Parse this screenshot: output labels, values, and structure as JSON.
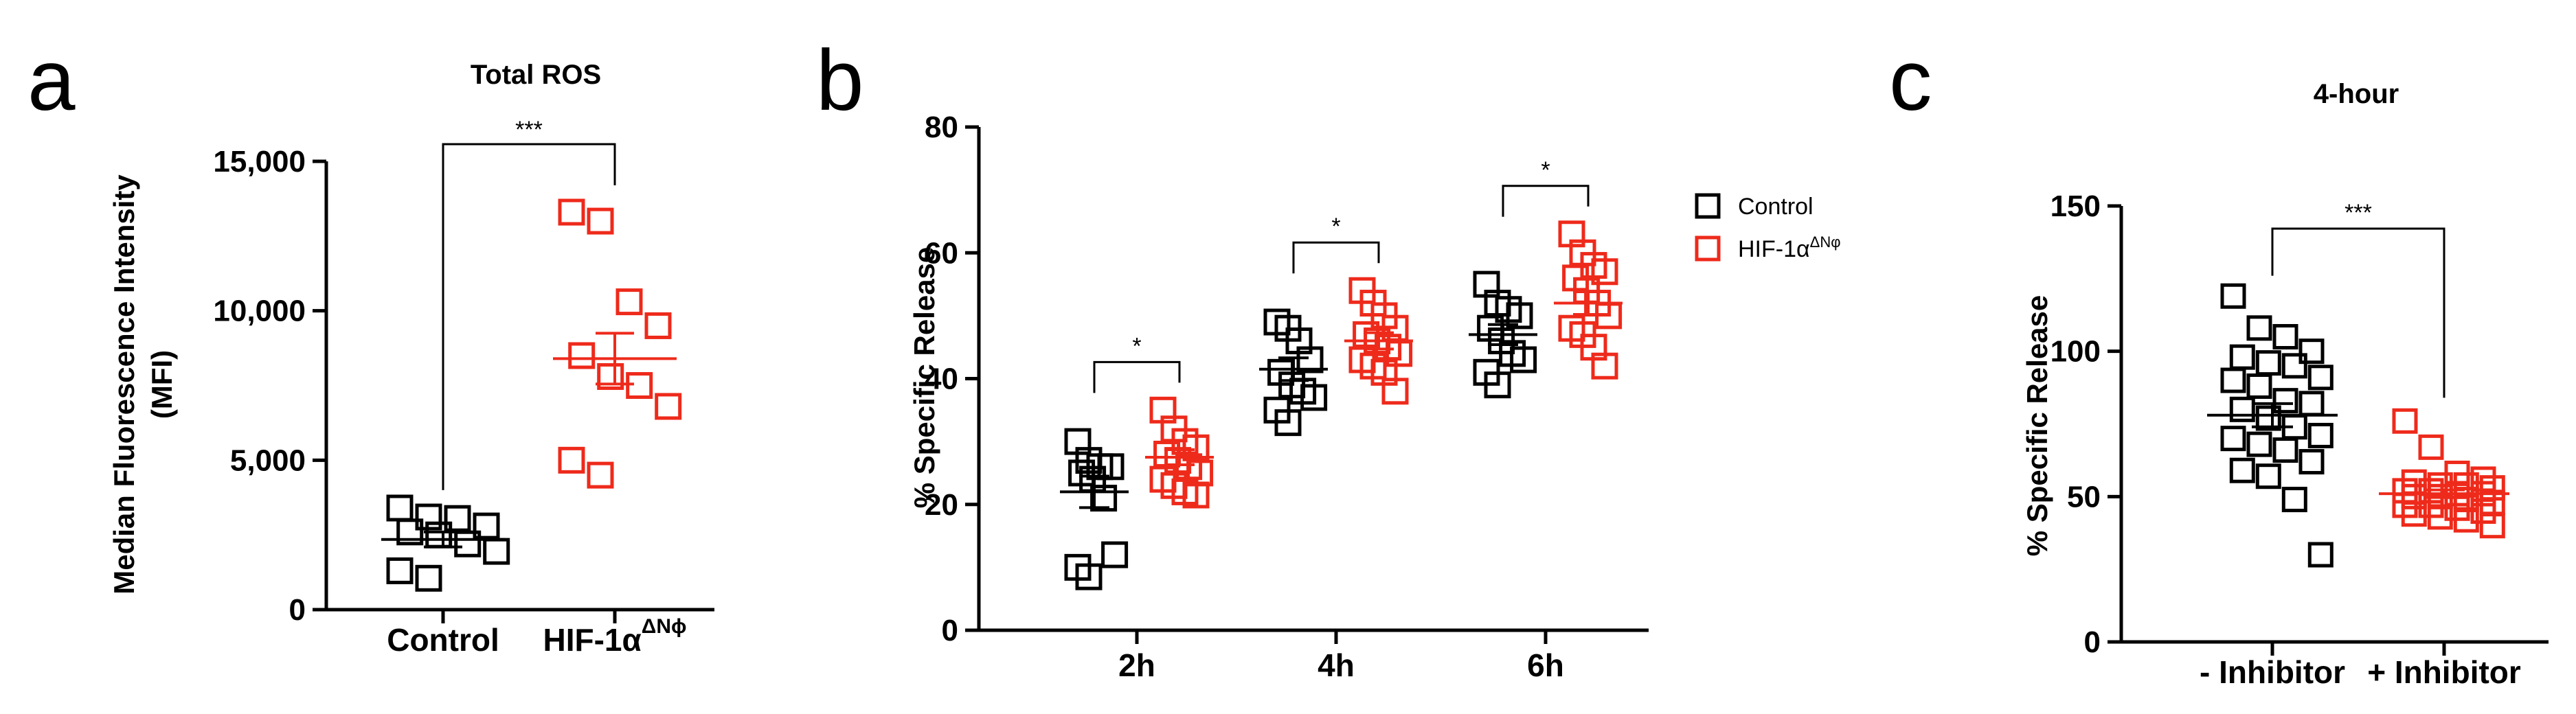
{
  "colors": {
    "control": "#000000",
    "treatment": "#ee2a1b"
  },
  "chart_data": [
    {
      "panel": "a",
      "type": "scatter",
      "title": "Total ROS",
      "ylabel_line1": "Median Fluorescence Intensity",
      "ylabel_line2": "(MFI)",
      "ylim": [
        0,
        15000
      ],
      "yticks": [
        {
          "value": 0,
          "label": "0"
        },
        {
          "value": 5000,
          "label": "5,000"
        },
        {
          "value": 10000,
          "label": "10,000"
        },
        {
          "value": 15000,
          "label": "15,000"
        }
      ],
      "categories": [
        {
          "label": "Control"
        },
        {
          "label": "HIF-1α",
          "sup": "ΔNϕ"
        }
      ],
      "groups": [
        {
          "category": 0,
          "color": "control",
          "values": [
            3400,
            3100,
            3050,
            2800,
            2600,
            2500,
            2200,
            1950,
            1300,
            1050
          ],
          "mean": 2350,
          "sem": 250
        },
        {
          "category": 1,
          "color": "treatment",
          "values": [
            13300,
            13000,
            10300,
            9500,
            8500,
            7800,
            7500,
            6800,
            5000,
            4500
          ],
          "mean": 8400,
          "sem": 850
        }
      ],
      "significance": [
        {
          "from": 0,
          "to": 1,
          "label": "***"
        }
      ]
    },
    {
      "panel": "b",
      "type": "scatter",
      "title": "",
      "ylabel": "% Specific Release",
      "ylim": [
        0,
        80
      ],
      "yticks": [
        {
          "value": 0,
          "label": "0"
        },
        {
          "value": 20,
          "label": "20"
        },
        {
          "value": 40,
          "label": "40"
        },
        {
          "value": 60,
          "label": "60"
        },
        {
          "value": 80,
          "label": "80"
        }
      ],
      "categories": [
        {
          "label": "2h"
        },
        {
          "label": "4h"
        },
        {
          "label": "6h"
        }
      ],
      "legend": [
        {
          "label": "Control",
          "color": "control"
        },
        {
          "label": "HIF-1α",
          "sup": "ΔNφ",
          "color": "treatment"
        }
      ],
      "legend_placement": "right",
      "groups": [
        {
          "category": 0,
          "series": 0,
          "color": "control",
          "values": [
            30,
            27,
            26,
            26,
            25,
            24,
            21,
            12,
            10,
            8.5
          ],
          "mean": 22,
          "sem": 2.5
        },
        {
          "category": 0,
          "series": 1,
          "color": "treatment",
          "values": [
            35,
            32,
            30,
            29,
            28,
            27,
            26,
            25,
            24,
            23,
            22,
            21.5
          ],
          "mean": 27.5,
          "sem": 1.2
        },
        {
          "category": 1,
          "series": 0,
          "color": "control",
          "values": [
            49,
            48,
            46,
            43,
            41,
            39,
            38,
            37,
            35,
            33
          ],
          "mean": 41.5,
          "sem": 1.8
        },
        {
          "category": 1,
          "series": 1,
          "color": "treatment",
          "values": [
            54,
            52,
            50,
            48,
            47,
            46,
            45,
            44,
            43,
            42,
            41,
            38
          ],
          "mean": 46,
          "sem": 1.3
        },
        {
          "category": 2,
          "series": 0,
          "color": "control",
          "values": [
            55,
            52,
            51,
            50,
            48,
            46,
            44,
            43,
            41,
            39
          ],
          "mean": 47,
          "sem": 1.6
        },
        {
          "category": 2,
          "series": 1,
          "color": "treatment",
          "values": [
            63,
            60,
            58,
            57,
            56,
            54,
            52,
            50,
            48,
            47,
            45,
            42
          ],
          "mean": 52,
          "sem": 1.8
        }
      ],
      "significance": [
        {
          "category": 0,
          "label": "*"
        },
        {
          "category": 1,
          "label": "*"
        },
        {
          "category": 2,
          "label": "*"
        }
      ]
    },
    {
      "panel": "c",
      "type": "scatter",
      "title": "4-hour",
      "ylabel": "% Specific Release",
      "ylim": [
        0,
        150
      ],
      "yticks": [
        {
          "value": 0,
          "label": "0"
        },
        {
          "value": 50,
          "label": "50"
        },
        {
          "value": 100,
          "label": "100"
        },
        {
          "value": 150,
          "label": "150"
        }
      ],
      "categories": [
        {
          "label": "- Inhibitor"
        },
        {
          "label": "+ Inhibitor"
        }
      ],
      "groups": [
        {
          "category": 0,
          "color": "control",
          "values": [
            119,
            108,
            105,
            100,
            98,
            96,
            95,
            91,
            90,
            88,
            83,
            82,
            80,
            77,
            74,
            71,
            70,
            68,
            66,
            62,
            59,
            57,
            49,
            30
          ],
          "mean": 78,
          "sem": 4
        },
        {
          "category": 1,
          "color": "treatment",
          "values": [
            76,
            67,
            58,
            56,
            55,
            54,
            54,
            53,
            52,
            52,
            51,
            51,
            50,
            50,
            49,
            48,
            47,
            47,
            46,
            45,
            44,
            43,
            42,
            40
          ],
          "mean": 51,
          "sem": 1.3
        }
      ],
      "significance": [
        {
          "from": 0,
          "to": 1,
          "label": "***"
        }
      ]
    }
  ]
}
